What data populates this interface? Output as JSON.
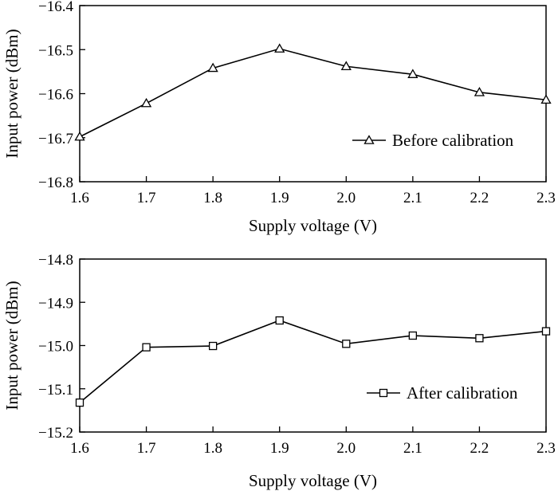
{
  "chart_data": [
    {
      "type": "line",
      "title": "",
      "xlabel": "Supply voltage (V)",
      "ylabel": "Input power (dBm)",
      "xlim": [
        1.6,
        2.3
      ],
      "ylim": [
        -16.8,
        -16.4
      ],
      "xticks": [
        1.6,
        1.7,
        1.8,
        1.9,
        2.0,
        2.1,
        2.2,
        2.3
      ],
      "xtick_labels": [
        "1.6",
        "1.7",
        "1.8",
        "1.9",
        "2.0",
        "2.1",
        "2.2",
        "2.3"
      ],
      "yticks": [
        -16.8,
        -16.7,
        -16.6,
        -16.5,
        -16.4
      ],
      "ytick_labels": [
        "−16.8",
        "−16.7",
        "−16.6",
        "−16.5",
        "−16.4"
      ],
      "grid": false,
      "legend_position": "right",
      "marker": "triangle",
      "series": [
        {
          "name": "Before calibration",
          "x": [
            1.6,
            1.7,
            1.8,
            1.9,
            2.0,
            2.1,
            2.2,
            2.3
          ],
          "y": [
            -16.698,
            -16.622,
            -16.542,
            -16.498,
            -16.538,
            -16.556,
            -16.597,
            -16.614
          ]
        }
      ]
    },
    {
      "type": "line",
      "title": "",
      "xlabel": "Supply voltage (V)",
      "ylabel": "Input power (dBm)",
      "xlim": [
        1.6,
        2.3
      ],
      "ylim": [
        -15.2,
        -14.8
      ],
      "xticks": [
        1.6,
        1.7,
        1.8,
        1.9,
        2.0,
        2.1,
        2.2,
        2.3
      ],
      "xtick_labels": [
        "1.6",
        "1.7",
        "1.8",
        "1.9",
        "2.0",
        "2.1",
        "2.2",
        "2.3"
      ],
      "yticks": [
        -15.2,
        -15.1,
        -15.0,
        -14.9,
        -14.8
      ],
      "ytick_labels": [
        "−15.2",
        "−15.1",
        "−15.0",
        "−14.9",
        "−14.8"
      ],
      "grid": false,
      "legend_position": "right",
      "marker": "square",
      "series": [
        {
          "name": "After calibration",
          "x": [
            1.6,
            1.7,
            1.8,
            1.9,
            2.0,
            2.1,
            2.2,
            2.3
          ],
          "y": [
            -15.132,
            -15.004,
            -15.001,
            -14.942,
            -14.996,
            -14.977,
            -14.983,
            -14.967
          ]
        }
      ]
    }
  ]
}
